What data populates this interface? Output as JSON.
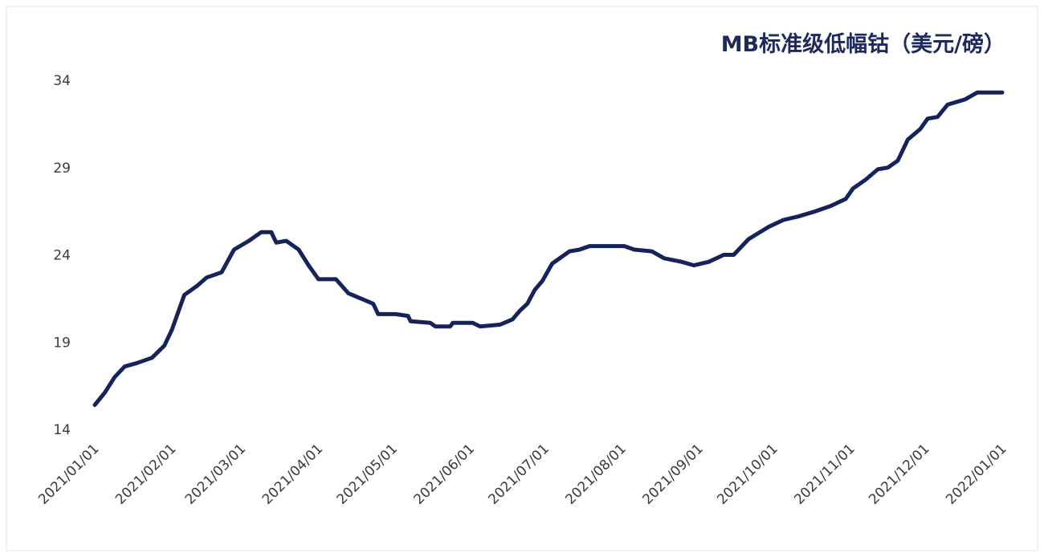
{
  "chart_data": {
    "type": "line",
    "title": "MB标准级低幅钴（美元/磅）",
    "x": [
      "2021/01/01",
      "2021/01/05",
      "2021/01/09",
      "2021/01/13",
      "2021/01/18",
      "2021/01/24",
      "2021/01/29",
      "2021/02/01",
      "2021/02/06",
      "2021/02/11",
      "2021/02/15",
      "2021/02/21",
      "2021/02/26",
      "2021/03/04",
      "2021/03/09",
      "2021/03/13",
      "2021/03/15",
      "2021/03/19",
      "2021/03/24",
      "2021/03/28",
      "2021/04/01",
      "2021/04/08",
      "2021/04/13",
      "2021/04/18",
      "2021/04/23",
      "2021/04/25",
      "2021/05/02",
      "2021/05/07",
      "2021/05/08",
      "2021/05/16",
      "2021/05/18",
      "2021/05/24",
      "2021/05/25",
      "2021/06/02",
      "2021/06/05",
      "2021/06/13",
      "2021/06/18",
      "2021/06/21",
      "2021/06/24",
      "2021/06/27",
      "2021/06/30",
      "2021/07/04",
      "2021/07/07",
      "2021/07/11",
      "2021/07/15",
      "2021/07/19",
      "2021/08/02",
      "2021/08/06",
      "2021/08/13",
      "2021/08/18",
      "2021/08/25",
      "2021/08/30",
      "2021/09/05",
      "2021/09/11",
      "2021/09/15",
      "2021/09/21",
      "2021/09/29",
      "2021/10/05",
      "2021/10/11",
      "2021/10/18",
      "2021/10/24",
      "2021/10/30",
      "2021/11/02",
      "2021/11/07",
      "2021/11/12",
      "2021/11/16",
      "2021/11/20",
      "2021/11/24",
      "2021/11/29",
      "2021/12/02",
      "2021/12/06",
      "2021/12/10",
      "2021/12/17",
      "2021/12/22",
      "2022/01/01"
    ],
    "series": [
      {
        "name": "MB标准级低幅钴",
        "color": "#15235a",
        "values": [
          15.4,
          16.1,
          17.0,
          17.6,
          17.8,
          18.1,
          18.8,
          19.7,
          21.7,
          22.2,
          22.7,
          23.0,
          24.3,
          24.8,
          25.3,
          25.3,
          24.7,
          24.8,
          24.3,
          23.4,
          22.6,
          22.6,
          21.8,
          21.5,
          21.2,
          20.6,
          20.6,
          20.5,
          20.2,
          20.1,
          19.9,
          19.9,
          20.1,
          20.1,
          19.9,
          20.0,
          20.3,
          20.8,
          21.2,
          22.0,
          22.5,
          23.5,
          23.8,
          24.2,
          24.3,
          24.5,
          24.5,
          24.3,
          24.2,
          23.8,
          23.6,
          23.4,
          23.6,
          24.0,
          24.0,
          24.9,
          25.6,
          26.0,
          26.2,
          26.5,
          26.8,
          27.2,
          27.8,
          28.3,
          28.9,
          29.0,
          29.4,
          30.6,
          31.2,
          31.8,
          31.9,
          32.6,
          32.9,
          33.3,
          33.3
        ]
      }
    ],
    "xlim": [
      "2021/01/01",
      "2022/01/01"
    ],
    "xticks": [
      "2021/01/01",
      "2021/02/01",
      "2021/03/01",
      "2021/04/01",
      "2021/05/01",
      "2021/06/01",
      "2021/07/01",
      "2021/08/01",
      "2021/09/01",
      "2021/10/01",
      "2021/11/01",
      "2021/12/01",
      "2022/01/01"
    ],
    "ylim": [
      14,
      34
    ],
    "yticks": [
      14,
      19,
      24,
      29,
      34
    ]
  }
}
